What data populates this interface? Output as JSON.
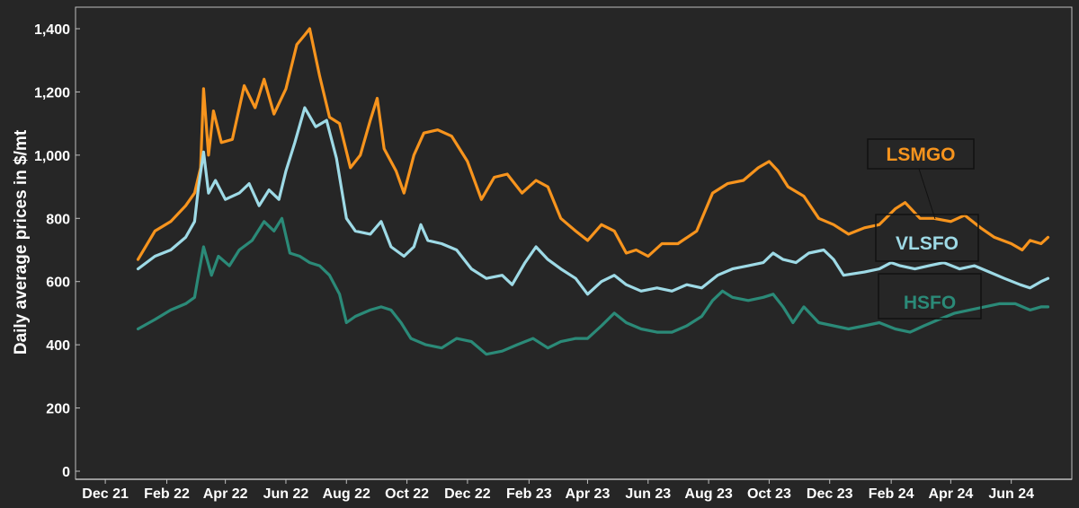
{
  "chart_data": {
    "type": "line",
    "ylabel": "Daily average prices in $/mt",
    "xlabel": "",
    "ylim": [
      0,
      1400
    ],
    "yticks": [
      0,
      200,
      400,
      600,
      800,
      1000,
      1200,
      1400
    ],
    "ytick_labels": [
      "0",
      "200",
      "400",
      "600",
      "800",
      "1,000",
      "1,200",
      "1,400"
    ],
    "xticks": [
      "2021-12-01",
      "2022-02-01",
      "2022-04-01",
      "2022-06-01",
      "2022-08-01",
      "2022-10-01",
      "2022-12-01",
      "2023-02-01",
      "2023-04-01",
      "2023-06-01",
      "2023-08-01",
      "2023-10-01",
      "2023-12-01",
      "2024-02-01",
      "2024-04-01",
      "2024-06-01"
    ],
    "xtick_labels": [
      "Dec 21",
      "Feb 22",
      "Apr 22",
      "Jun 22",
      "Aug 22",
      "Oct 22",
      "Dec 22",
      "Feb 23",
      "Apr 23",
      "Jun 23",
      "Aug 23",
      "Oct 23",
      "Dec 23",
      "Feb 24",
      "Apr 24",
      "Jun 24"
    ],
    "xlim": [
      "2021-11-01",
      "2024-08-01"
    ],
    "grid": false,
    "colors": {
      "background": "#262626",
      "axis": "#bfbfbf",
      "text": "#ffffff"
    },
    "series": [
      {
        "name": "LSMGO",
        "color": "#f7941d",
        "points": [
          [
            "2022-01-03",
            670
          ],
          [
            "2022-01-20",
            760
          ],
          [
            "2022-02-05",
            790
          ],
          [
            "2022-02-20",
            840
          ],
          [
            "2022-03-01",
            880
          ],
          [
            "2022-03-07",
            960
          ],
          [
            "2022-03-10",
            1210
          ],
          [
            "2022-03-15",
            1000
          ],
          [
            "2022-03-20",
            1140
          ],
          [
            "2022-03-28",
            1040
          ],
          [
            "2022-04-08",
            1050
          ],
          [
            "2022-04-20",
            1220
          ],
          [
            "2022-05-01",
            1150
          ],
          [
            "2022-05-10",
            1240
          ],
          [
            "2022-05-20",
            1130
          ],
          [
            "2022-06-01",
            1210
          ],
          [
            "2022-06-12",
            1350
          ],
          [
            "2022-06-20",
            1380
          ],
          [
            "2022-06-25",
            1400
          ],
          [
            "2022-07-05",
            1250
          ],
          [
            "2022-07-15",
            1120
          ],
          [
            "2022-07-25",
            1100
          ],
          [
            "2022-08-05",
            960
          ],
          [
            "2022-08-15",
            1000
          ],
          [
            "2022-08-25",
            1110
          ],
          [
            "2022-09-01",
            1180
          ],
          [
            "2022-09-08",
            1020
          ],
          [
            "2022-09-20",
            950
          ],
          [
            "2022-09-28",
            880
          ],
          [
            "2022-10-08",
            1000
          ],
          [
            "2022-10-18",
            1070
          ],
          [
            "2022-11-01",
            1080
          ],
          [
            "2022-11-15",
            1060
          ],
          [
            "2022-12-01",
            980
          ],
          [
            "2022-12-15",
            860
          ],
          [
            "2022-12-28",
            930
          ],
          [
            "2023-01-10",
            940
          ],
          [
            "2023-01-25",
            880
          ],
          [
            "2023-02-08",
            920
          ],
          [
            "2023-02-20",
            900
          ],
          [
            "2023-03-05",
            800
          ],
          [
            "2023-03-20",
            760
          ],
          [
            "2023-04-01",
            730
          ],
          [
            "2023-04-15",
            780
          ],
          [
            "2023-04-28",
            760
          ],
          [
            "2023-05-10",
            690
          ],
          [
            "2023-05-20",
            700
          ],
          [
            "2023-06-01",
            680
          ],
          [
            "2023-06-15",
            720
          ],
          [
            "2023-07-01",
            720
          ],
          [
            "2023-07-20",
            760
          ],
          [
            "2023-08-05",
            880
          ],
          [
            "2023-08-20",
            910
          ],
          [
            "2023-09-05",
            920
          ],
          [
            "2023-09-20",
            960
          ],
          [
            "2023-10-01",
            980
          ],
          [
            "2023-10-10",
            950
          ],
          [
            "2023-10-20",
            900
          ],
          [
            "2023-11-05",
            870
          ],
          [
            "2023-11-20",
            800
          ],
          [
            "2023-12-05",
            780
          ],
          [
            "2023-12-20",
            750
          ],
          [
            "2024-01-05",
            770
          ],
          [
            "2024-01-20",
            780
          ],
          [
            "2024-02-05",
            830
          ],
          [
            "2024-02-15",
            850
          ],
          [
            "2024-03-01",
            800
          ],
          [
            "2024-03-15",
            800
          ],
          [
            "2024-04-01",
            790
          ],
          [
            "2024-04-15",
            810
          ],
          [
            "2024-05-01",
            770
          ],
          [
            "2024-05-15",
            740
          ],
          [
            "2024-06-01",
            720
          ],
          [
            "2024-06-12",
            700
          ],
          [
            "2024-06-20",
            730
          ],
          [
            "2024-07-01",
            720
          ],
          [
            "2024-07-08",
            740
          ]
        ]
      },
      {
        "name": "VLSFO",
        "color": "#9edae6",
        "points": [
          [
            "2022-01-03",
            640
          ],
          [
            "2022-01-20",
            680
          ],
          [
            "2022-02-05",
            700
          ],
          [
            "2022-02-20",
            740
          ],
          [
            "2022-03-01",
            790
          ],
          [
            "2022-03-05",
            900
          ],
          [
            "2022-03-10",
            1010
          ],
          [
            "2022-03-15",
            880
          ],
          [
            "2022-03-22",
            920
          ],
          [
            "2022-04-01",
            860
          ],
          [
            "2022-04-15",
            880
          ],
          [
            "2022-04-25",
            910
          ],
          [
            "2022-05-05",
            840
          ],
          [
            "2022-05-15",
            890
          ],
          [
            "2022-05-25",
            860
          ],
          [
            "2022-06-01",
            950
          ],
          [
            "2022-06-10",
            1040
          ],
          [
            "2022-06-20",
            1150
          ],
          [
            "2022-07-01",
            1090
          ],
          [
            "2022-07-12",
            1110
          ],
          [
            "2022-07-22",
            990
          ],
          [
            "2022-08-01",
            800
          ],
          [
            "2022-08-10",
            760
          ],
          [
            "2022-08-25",
            750
          ],
          [
            "2022-09-05",
            790
          ],
          [
            "2022-09-15",
            710
          ],
          [
            "2022-09-28",
            680
          ],
          [
            "2022-10-08",
            710
          ],
          [
            "2022-10-15",
            780
          ],
          [
            "2022-10-22",
            730
          ],
          [
            "2022-11-05",
            720
          ],
          [
            "2022-11-20",
            700
          ],
          [
            "2022-12-05",
            640
          ],
          [
            "2022-12-20",
            610
          ],
          [
            "2023-01-05",
            620
          ],
          [
            "2023-01-15",
            590
          ],
          [
            "2023-01-28",
            660
          ],
          [
            "2023-02-08",
            710
          ],
          [
            "2023-02-20",
            670
          ],
          [
            "2023-03-05",
            640
          ],
          [
            "2023-03-20",
            610
          ],
          [
            "2023-04-01",
            560
          ],
          [
            "2023-04-15",
            600
          ],
          [
            "2023-04-28",
            620
          ],
          [
            "2023-05-10",
            590
          ],
          [
            "2023-05-25",
            570
          ],
          [
            "2023-06-10",
            580
          ],
          [
            "2023-06-25",
            570
          ],
          [
            "2023-07-10",
            590
          ],
          [
            "2023-07-25",
            580
          ],
          [
            "2023-08-10",
            620
          ],
          [
            "2023-08-25",
            640
          ],
          [
            "2023-09-10",
            650
          ],
          [
            "2023-09-25",
            660
          ],
          [
            "2023-10-05",
            690
          ],
          [
            "2023-10-15",
            670
          ],
          [
            "2023-10-28",
            660
          ],
          [
            "2023-11-10",
            690
          ],
          [
            "2023-11-25",
            700
          ],
          [
            "2023-12-05",
            670
          ],
          [
            "2023-12-15",
            620
          ],
          [
            "2024-01-05",
            630
          ],
          [
            "2024-01-20",
            640
          ],
          [
            "2024-02-01",
            660
          ],
          [
            "2024-02-10",
            650
          ],
          [
            "2024-02-25",
            640
          ],
          [
            "2024-03-10",
            650
          ],
          [
            "2024-03-25",
            660
          ],
          [
            "2024-04-10",
            640
          ],
          [
            "2024-04-25",
            650
          ],
          [
            "2024-05-10",
            630
          ],
          [
            "2024-05-25",
            610
          ],
          [
            "2024-06-10",
            590
          ],
          [
            "2024-06-20",
            580
          ],
          [
            "2024-07-01",
            600
          ],
          [
            "2024-07-08",
            610
          ]
        ]
      },
      {
        "name": "HSFO",
        "color": "#2b8a78",
        "points": [
          [
            "2022-01-03",
            450
          ],
          [
            "2022-01-20",
            480
          ],
          [
            "2022-02-05",
            510
          ],
          [
            "2022-02-20",
            530
          ],
          [
            "2022-03-01",
            550
          ],
          [
            "2022-03-06",
            640
          ],
          [
            "2022-03-10",
            710
          ],
          [
            "2022-03-18",
            620
          ],
          [
            "2022-03-25",
            680
          ],
          [
            "2022-04-05",
            650
          ],
          [
            "2022-04-15",
            700
          ],
          [
            "2022-04-28",
            730
          ],
          [
            "2022-05-10",
            790
          ],
          [
            "2022-05-20",
            760
          ],
          [
            "2022-05-28",
            800
          ],
          [
            "2022-06-05",
            690
          ],
          [
            "2022-06-15",
            680
          ],
          [
            "2022-06-25",
            660
          ],
          [
            "2022-07-05",
            650
          ],
          [
            "2022-07-15",
            620
          ],
          [
            "2022-07-25",
            560
          ],
          [
            "2022-08-01",
            470
          ],
          [
            "2022-08-10",
            490
          ],
          [
            "2022-08-25",
            510
          ],
          [
            "2022-09-05",
            520
          ],
          [
            "2022-09-15",
            510
          ],
          [
            "2022-09-25",
            470
          ],
          [
            "2022-10-05",
            420
          ],
          [
            "2022-10-20",
            400
          ],
          [
            "2022-11-05",
            390
          ],
          [
            "2022-11-20",
            420
          ],
          [
            "2022-12-05",
            410
          ],
          [
            "2022-12-20",
            370
          ],
          [
            "2023-01-05",
            380
          ],
          [
            "2023-01-20",
            400
          ],
          [
            "2023-02-05",
            420
          ],
          [
            "2023-02-20",
            390
          ],
          [
            "2023-03-05",
            410
          ],
          [
            "2023-03-20",
            420
          ],
          [
            "2023-04-01",
            420
          ],
          [
            "2023-04-15",
            460
          ],
          [
            "2023-04-28",
            500
          ],
          [
            "2023-05-10",
            470
          ],
          [
            "2023-05-25",
            450
          ],
          [
            "2023-06-10",
            440
          ],
          [
            "2023-06-25",
            440
          ],
          [
            "2023-07-10",
            460
          ],
          [
            "2023-07-25",
            490
          ],
          [
            "2023-08-05",
            540
          ],
          [
            "2023-08-15",
            570
          ],
          [
            "2023-08-25",
            550
          ],
          [
            "2023-09-10",
            540
          ],
          [
            "2023-09-25",
            550
          ],
          [
            "2023-10-05",
            560
          ],
          [
            "2023-10-15",
            520
          ],
          [
            "2023-10-25",
            470
          ],
          [
            "2023-11-05",
            520
          ],
          [
            "2023-11-20",
            470
          ],
          [
            "2023-12-05",
            460
          ],
          [
            "2023-12-20",
            450
          ],
          [
            "2024-01-05",
            460
          ],
          [
            "2024-01-20",
            470
          ],
          [
            "2024-02-05",
            450
          ],
          [
            "2024-02-20",
            440
          ],
          [
            "2024-03-05",
            460
          ],
          [
            "2024-03-20",
            480
          ],
          [
            "2024-04-05",
            500
          ],
          [
            "2024-04-20",
            510
          ],
          [
            "2024-05-05",
            520
          ],
          [
            "2024-05-20",
            530
          ],
          [
            "2024-06-05",
            530
          ],
          [
            "2024-06-20",
            510
          ],
          [
            "2024-07-01",
            520
          ],
          [
            "2024-07-08",
            520
          ]
        ]
      }
    ],
    "legend": [
      {
        "label": "LSMGO",
        "color": "#f7941d"
      },
      {
        "label": "VLSFO",
        "color": "#9edae6"
      },
      {
        "label": "HSFO",
        "color": "#2b8a78"
      }
    ]
  }
}
